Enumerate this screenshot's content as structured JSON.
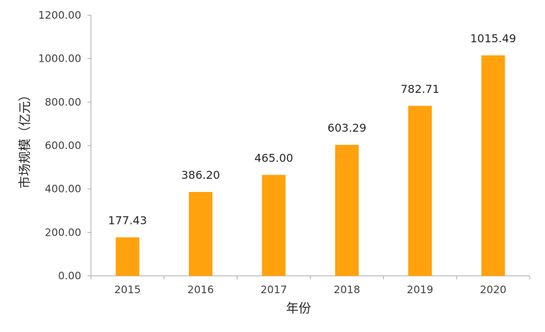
{
  "chart_data": {
    "type": "bar",
    "categories": [
      "2015",
      "2016",
      "2017",
      "2018",
      "2019",
      "2020"
    ],
    "values": [
      177.43,
      386.2,
      465.0,
      603.29,
      782.71,
      1015.49
    ],
    "value_labels": [
      "177.43",
      "386.20",
      "465.00",
      "603.29",
      "782.71",
      "1015.49"
    ],
    "title": "",
    "xlabel": "年份",
    "ylabel": "市场规模（亿元）",
    "ylim": [
      0,
      1200
    ],
    "yticks": [
      0,
      200,
      400,
      600,
      800,
      1000,
      1200
    ],
    "ytick_labels": [
      "0.00",
      "200.00",
      "400.00",
      "600.00",
      "800.00",
      "1000.00",
      "1200.00"
    ],
    "grid": false,
    "legend": "none",
    "bar_color": "#FFA20D",
    "axis_color": "#A6A6A6"
  }
}
